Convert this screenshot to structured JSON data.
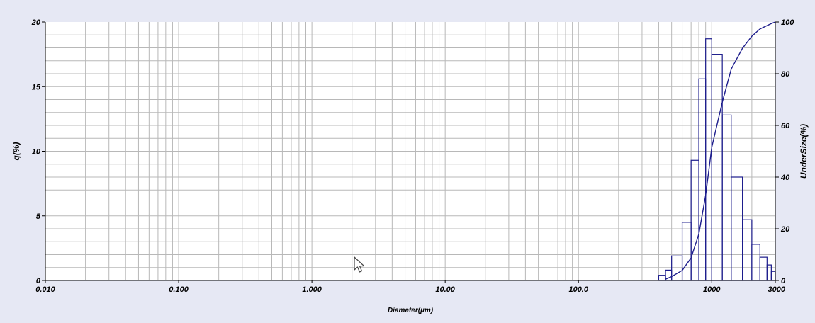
{
  "chart_data": {
    "type": "bar",
    "title": "",
    "xlabel": "Diameter(µm)",
    "ylabel": "q(%)",
    "y2label": "UnderSize(%)",
    "x_scale": "log",
    "xlim": [
      0.01,
      3000
    ],
    "ylim": [
      0,
      20
    ],
    "y2lim": [
      0,
      100
    ],
    "grid": true,
    "x_tick_values": [
      0.01,
      0.1,
      1,
      10,
      100,
      1000,
      3000
    ],
    "x_tick_labels": [
      "0.010",
      "0.100",
      "1.000",
      "10.00",
      "100.0",
      "1000",
      "3000"
    ],
    "y_ticks": [
      0,
      5,
      10,
      15,
      20
    ],
    "y2_ticks": [
      0,
      20,
      40,
      60,
      80,
      100
    ],
    "histogram": {
      "name": "q(%)",
      "bins": [
        {
          "x0": 400,
          "x1": 450,
          "value": 0.4
        },
        {
          "x0": 450,
          "x1": 500,
          "value": 0.8
        },
        {
          "x0": 500,
          "x1": 600,
          "value": 1.9
        },
        {
          "x0": 600,
          "x1": 700,
          "value": 4.5
        },
        {
          "x0": 700,
          "x1": 800,
          "value": 9.3
        },
        {
          "x0": 800,
          "x1": 900,
          "value": 15.6
        },
        {
          "x0": 900,
          "x1": 1000,
          "value": 18.7
        },
        {
          "x0": 1000,
          "x1": 1200,
          "value": 17.5
        },
        {
          "x0": 1200,
          "x1": 1400,
          "value": 12.8
        },
        {
          "x0": 1400,
          "x1": 1700,
          "value": 8.0
        },
        {
          "x0": 1700,
          "x1": 2000,
          "value": 4.7
        },
        {
          "x0": 2000,
          "x1": 2300,
          "value": 2.8
        },
        {
          "x0": 2300,
          "x1": 2600,
          "value": 1.8
        },
        {
          "x0": 2600,
          "x1": 2800,
          "value": 1.2
        },
        {
          "x0": 2800,
          "x1": 3000,
          "value": 0.7
        }
      ]
    },
    "cumulative": {
      "name": "UnderSize(%)",
      "x": [
        450,
        500,
        600,
        700,
        800,
        900,
        1000,
        1200,
        1400,
        1700,
        2000,
        2300,
        2600,
        2800,
        3000
      ],
      "values": [
        0.5,
        1.5,
        3.9,
        8.7,
        18,
        33,
        51.5,
        69,
        81.8,
        89.8,
        94.5,
        97.3,
        98.6,
        99.4,
        100
      ]
    },
    "colors": {
      "series": "#1c1c8c",
      "grid": "#b8b8b8",
      "plot_bg": "#ffffff",
      "page_bg": "#e6e8f4",
      "axis": "#000000"
    }
  }
}
